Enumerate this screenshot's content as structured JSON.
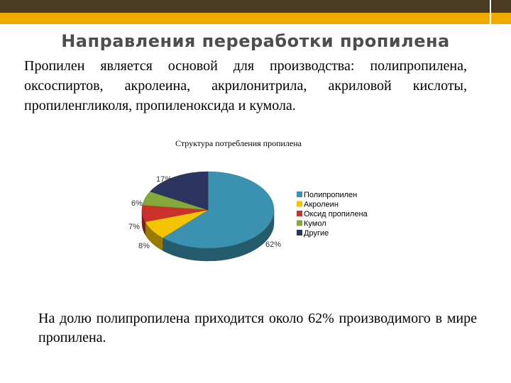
{
  "slide": {
    "title": "Направления переработки пропилена",
    "intro": "Пропилен является основой для производства: полипропилена, оксоспиртов, акролеина, акрилонитрила, акриловой кислоты, пропиленгликоля, пропиленоксида и кумола.",
    "outro": "На долю полипропилена приходится около 62% производимого в мире пропилена.",
    "colors": {
      "header_dark": "#4a3b22",
      "header_gold": "#f2a900"
    }
  },
  "chart_data": {
    "type": "pie",
    "title": "Структура потребления пропилена",
    "categories": [
      "Полипропилен",
      "Акролеин",
      "Оксид пропилена",
      "Кумол",
      "Другие"
    ],
    "values": [
      62,
      8,
      7,
      6,
      17
    ],
    "labels": [
      "62%",
      "8%",
      "7%",
      "6%",
      "17%"
    ],
    "colors": [
      "#3a92b0",
      "#f5c400",
      "#c9322b",
      "#85a83a",
      "#2b3560"
    ],
    "legend": "right",
    "style": "3d"
  }
}
